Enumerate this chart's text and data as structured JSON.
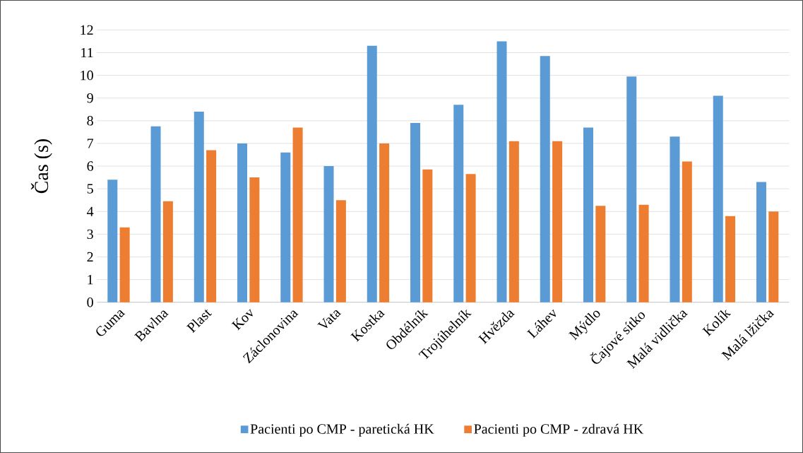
{
  "chart_data": {
    "type": "bar",
    "ylabel": "Čas (s)",
    "categories": [
      "Guma",
      "Bavlna",
      "Plast",
      "Kov",
      "Záclonovina",
      "Vata",
      "Kostka",
      "Obdélník",
      "Trojúhelník",
      "Hvězda",
      "Láhev",
      "Mýdlo",
      "Čajové sítko",
      "Malá vidlička",
      "Kolík",
      "Malá lžička"
    ],
    "series": [
      {
        "name": "Pacienti po CMP - paretická HK",
        "color": "#5b9bd5",
        "values": [
          5.4,
          7.75,
          8.4,
          7.0,
          6.6,
          6.0,
          11.3,
          7.9,
          8.7,
          11.5,
          10.85,
          7.7,
          9.95,
          7.3,
          9.1,
          5.3
        ]
      },
      {
        "name": "Pacienti po CMP - zdravá HK",
        "color": "#ed7d31",
        "values": [
          3.3,
          4.45,
          6.7,
          5.5,
          7.7,
          4.5,
          7.0,
          5.85,
          5.65,
          7.1,
          7.1,
          4.25,
          4.3,
          6.2,
          3.8,
          4.0
        ]
      }
    ],
    "ylim": [
      0,
      12
    ],
    "yticks": [
      0,
      1,
      2,
      3,
      4,
      5,
      6,
      7,
      8,
      9,
      10,
      11,
      12
    ],
    "grid": "y",
    "legend": "bottom"
  }
}
